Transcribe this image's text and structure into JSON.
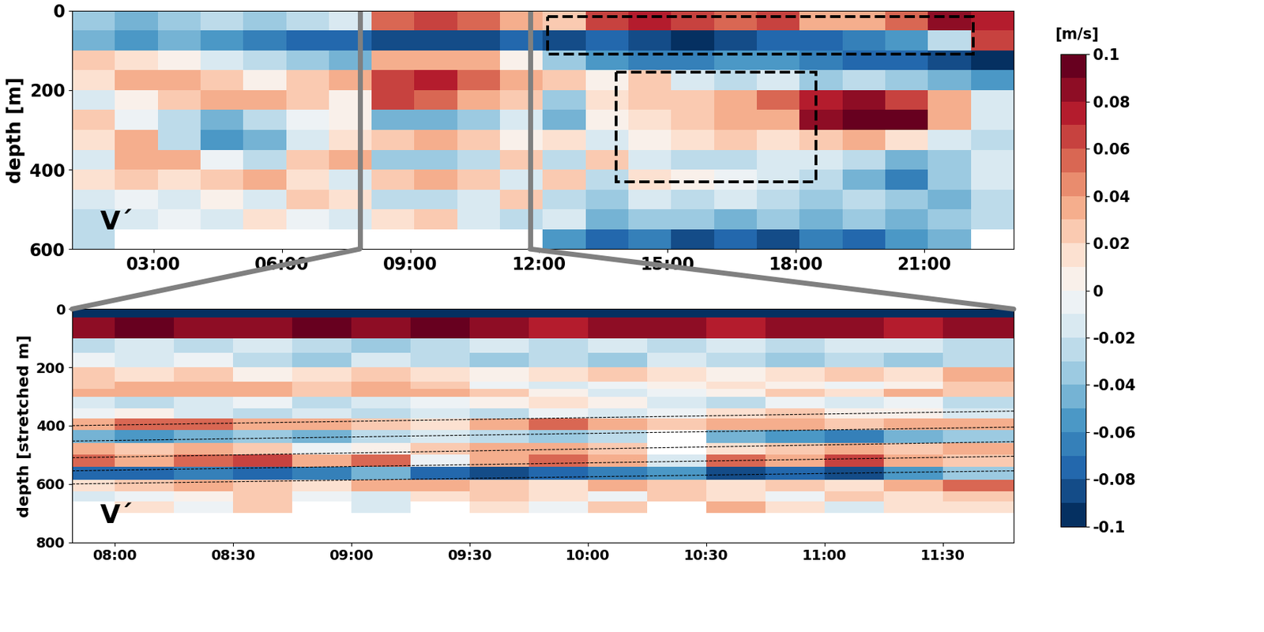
{
  "chart_data": [
    {
      "type": "heatmap",
      "ylabel": "depth [m]",
      "annotation": "V´",
      "xlim": [
        1.1,
        23.1
      ],
      "ylim": [
        600,
        0
      ],
      "xticks": [
        {
          "value": 3,
          "label": "03:00"
        },
        {
          "value": 6,
          "label": "06:00"
        },
        {
          "value": 9,
          "label": "09:00"
        },
        {
          "value": 12,
          "label": "12:00"
        },
        {
          "value": 15,
          "label": "15:00"
        },
        {
          "value": 18,
          "label": "18:00"
        },
        {
          "value": 21,
          "label": "21:00"
        }
      ],
      "yticks": [
        0,
        200,
        400,
        600
      ],
      "x_edges": [
        1.1,
        2.1,
        3.1,
        4.1,
        5.1,
        6.1,
        7.1,
        8.1,
        9.1,
        10.1,
        11.1,
        12.1,
        13.1,
        14.1,
        15.1,
        16.1,
        17.1,
        18.1,
        19.1,
        20.1,
        21.1,
        22.1,
        23.1
      ],
      "depth_edges": [
        0,
        50,
        100,
        150,
        200,
        250,
        300,
        350,
        400,
        450,
        500,
        550,
        600
      ],
      "cells": [
        [
          -0.04,
          -0.05,
          -0.04,
          -0.03,
          -0.04,
          -0.03,
          -0.02,
          0.05,
          0.06,
          0.05,
          0.04,
          0.02,
          0.06,
          0.07,
          0.06,
          0.05,
          0.06,
          0.04,
          0.03,
          0.05,
          0.08,
          0.07
        ],
        [
          -0.05,
          -0.06,
          -0.05,
          -0.06,
          -0.07,
          -0.08,
          -0.08,
          -0.09,
          -0.09,
          -0.09,
          -0.08,
          -0.09,
          -0.08,
          -0.09,
          -0.1,
          -0.09,
          -0.08,
          -0.08,
          -0.07,
          -0.06,
          -0.03,
          0.06
        ],
        [
          0.02,
          0.01,
          0.0,
          -0.02,
          -0.03,
          -0.04,
          -0.05,
          0.03,
          0.04,
          0.03,
          0.0,
          -0.04,
          -0.06,
          -0.07,
          -0.07,
          -0.06,
          -0.06,
          -0.07,
          -0.08,
          -0.08,
          -0.09,
          -0.1
        ],
        [
          0.01,
          0.03,
          0.04,
          0.02,
          0.0,
          0.02,
          0.03,
          0.06,
          0.07,
          0.05,
          0.03,
          0.02,
          0.0,
          0.02,
          -0.02,
          -0.03,
          -0.02,
          -0.04,
          -0.03,
          -0.04,
          -0.05,
          -0.06
        ],
        [
          -0.02,
          0.0,
          0.02,
          0.03,
          0.04,
          0.02,
          0.0,
          0.06,
          0.05,
          0.04,
          0.02,
          -0.04,
          0.01,
          0.02,
          0.02,
          0.03,
          0.05,
          0.07,
          0.08,
          0.06,
          0.03,
          -0.02
        ],
        [
          0.02,
          -0.01,
          -0.03,
          -0.05,
          -0.03,
          -0.01,
          0.0,
          -0.05,
          -0.05,
          -0.04,
          -0.02,
          -0.05,
          0.0,
          0.01,
          0.02,
          0.03,
          0.04,
          0.08,
          0.1,
          0.09,
          0.03,
          -0.02
        ],
        [
          0.01,
          0.03,
          -0.03,
          -0.06,
          -0.05,
          -0.02,
          0.01,
          0.02,
          0.03,
          0.02,
          0.0,
          0.01,
          -0.02,
          0.0,
          0.01,
          0.02,
          0.01,
          0.02,
          0.03,
          0.01,
          -0.02,
          -0.03
        ],
        [
          -0.02,
          0.04,
          0.03,
          -0.01,
          -0.03,
          0.02,
          0.03,
          -0.04,
          -0.04,
          -0.03,
          0.02,
          -0.03,
          0.02,
          -0.02,
          -0.03,
          -0.03,
          -0.02,
          -0.02,
          -0.03,
          -0.05,
          -0.04,
          -0.02
        ],
        [
          0.01,
          0.02,
          0.01,
          0.02,
          0.03,
          0.01,
          -0.02,
          0.02,
          0.03,
          0.02,
          -0.02,
          0.02,
          -0.03,
          0.01,
          0.0,
          -0.01,
          -0.02,
          -0.03,
          -0.05,
          -0.07,
          -0.04,
          -0.02
        ],
        [
          -0.02,
          -0.01,
          -0.02,
          0.0,
          -0.02,
          0.02,
          0.01,
          -0.03,
          -0.03,
          -0.02,
          0.02,
          -0.03,
          -0.04,
          -0.02,
          -0.03,
          -0.02,
          -0.03,
          -0.04,
          -0.03,
          -0.04,
          -0.05,
          -0.03
        ],
        [
          -0.03,
          -0.02,
          -0.01,
          -0.02,
          0.01,
          -0.01,
          -0.02,
          0.01,
          0.02,
          -0.02,
          -0.03,
          -0.02,
          -0.05,
          -0.04,
          -0.04,
          -0.05,
          -0.04,
          -0.05,
          -0.04,
          -0.05,
          -0.04,
          -0.03
        ],
        [
          -0.03,
          null,
          null,
          null,
          null,
          null,
          null,
          null,
          null,
          null,
          null,
          -0.06,
          -0.08,
          -0.07,
          -0.09,
          -0.08,
          -0.09,
          -0.07,
          -0.08,
          -0.06,
          -0.05,
          null
        ]
      ],
      "boxes": [
        {
          "x": [
            12.21,
            22.16
          ],
          "depth": [
            15,
            110
          ]
        },
        {
          "x": [
            13.81,
            18.48
          ],
          "depth": [
            155,
            430
          ]
        }
      ],
      "colorbar": {
        "label": "[m/s]",
        "range": [
          -0.1,
          0.1
        ],
        "ticks": [
          -0.1,
          -0.08,
          -0.06,
          -0.04,
          -0.02,
          0,
          0.02,
          0.04,
          0.06,
          0.08,
          0.1
        ]
      }
    },
    {
      "type": "heatmap",
      "ylabel": "depth [stretched m]",
      "annotation": "V´",
      "xlim": [
        7.82,
        11.8
      ],
      "ylim": [
        800,
        0
      ],
      "xticks": [
        {
          "value": 8,
          "label": "08:00"
        },
        {
          "value": 8.5,
          "label": "08:30"
        },
        {
          "value": 9,
          "label": "09:00"
        },
        {
          "value": 9.5,
          "label": "09:30"
        },
        {
          "value": 10,
          "label": "10:00"
        },
        {
          "value": 10.5,
          "label": "10:30"
        },
        {
          "value": 11,
          "label": "11:00"
        },
        {
          "value": 11.5,
          "label": "11:30"
        }
      ],
      "yticks": [
        0,
        200,
        400,
        600,
        800
      ],
      "x_edges": [
        7.82,
        8.0,
        8.25,
        8.5,
        8.75,
        9.0,
        9.25,
        9.5,
        9.75,
        10.0,
        10.25,
        10.5,
        10.75,
        11.0,
        11.25,
        11.5,
        11.8
      ],
      "depth_edges": [
        0,
        30,
        100,
        150,
        200,
        250,
        275,
        300,
        340,
        375,
        415,
        460,
        500,
        540,
        585,
        625,
        660,
        700
      ],
      "cells": [
        [
          -0.1,
          -0.1,
          -0.1,
          -0.1,
          -0.1,
          -0.1,
          -0.1,
          -0.1,
          -0.1,
          -0.1,
          -0.1,
          -0.1,
          -0.1,
          -0.1,
          -0.1,
          -0.1
        ],
        [
          0.08,
          0.09,
          0.08,
          0.08,
          0.09,
          0.08,
          0.09,
          0.08,
          0.07,
          0.08,
          0.08,
          0.07,
          0.08,
          0.08,
          0.07,
          0.08
        ],
        [
          -0.03,
          -0.02,
          -0.03,
          -0.02,
          -0.03,
          -0.04,
          -0.03,
          -0.02,
          -0.03,
          -0.02,
          -0.03,
          -0.02,
          -0.03,
          -0.02,
          -0.02,
          -0.03
        ],
        [
          -0.01,
          -0.02,
          -0.01,
          -0.03,
          -0.04,
          -0.02,
          -0.03,
          -0.04,
          -0.03,
          -0.04,
          -0.02,
          -0.03,
          -0.04,
          -0.03,
          -0.04,
          -0.03
        ],
        [
          0.02,
          0.01,
          0.02,
          0.0,
          0.01,
          0.02,
          0.01,
          0.0,
          0.01,
          0.02,
          0.01,
          0.0,
          0.01,
          0.02,
          0.01,
          0.03
        ],
        [
          0.02,
          0.03,
          0.04,
          0.03,
          0.02,
          0.03,
          0.02,
          -0.01,
          -0.02,
          -0.01,
          0.0,
          0.01,
          0.0,
          -0.01,
          0.0,
          0.02
        ],
        [
          0.03,
          0.04,
          0.03,
          0.03,
          0.02,
          0.03,
          0.03,
          0.02,
          0.0,
          -0.02,
          -0.01,
          0.0,
          0.02,
          0.01,
          0.03,
          0.02
        ],
        [
          -0.02,
          -0.03,
          -0.02,
          -0.01,
          -0.03,
          -0.02,
          -0.01,
          0.0,
          0.01,
          0.0,
          -0.02,
          -0.03,
          -0.01,
          -0.02,
          -0.01,
          -0.03
        ],
        [
          -0.01,
          0.0,
          -0.02,
          -0.03,
          -0.02,
          -0.03,
          -0.02,
          -0.03,
          -0.01,
          -0.02,
          -0.01,
          0.01,
          0.02,
          0.0,
          0.0,
          -0.02
        ],
        [
          0.04,
          0.05,
          0.05,
          0.04,
          0.03,
          0.02,
          0.01,
          0.03,
          0.05,
          0.03,
          0.02,
          0.04,
          0.03,
          0.02,
          0.03,
          0.04
        ],
        [
          -0.05,
          -0.06,
          -0.05,
          -0.04,
          -0.05,
          -0.03,
          -0.02,
          -0.03,
          -0.04,
          -0.03,
          null,
          -0.05,
          -0.06,
          -0.07,
          -0.05,
          -0.04
        ],
        [
          0.03,
          0.02,
          0.03,
          0.02,
          -0.01,
          0.0,
          0.02,
          0.03,
          0.04,
          0.02,
          null,
          0.01,
          0.02,
          0.03,
          0.02,
          0.03
        ],
        [
          0.05,
          0.04,
          0.05,
          0.06,
          0.04,
          0.05,
          -0.01,
          0.04,
          0.05,
          0.04,
          -0.02,
          0.05,
          0.04,
          0.06,
          0.03,
          0.02
        ],
        [
          -0.08,
          -0.08,
          -0.07,
          -0.08,
          -0.07,
          -0.05,
          -0.08,
          -0.09,
          -0.08,
          -0.07,
          -0.06,
          -0.09,
          -0.08,
          -0.09,
          -0.06,
          -0.04
        ],
        [
          0.01,
          0.02,
          0.03,
          0.02,
          0.01,
          0.04,
          0.03,
          0.02,
          0.01,
          0.03,
          0.02,
          0.01,
          0.02,
          0.01,
          0.03,
          0.05
        ],
        [
          -0.02,
          -0.01,
          0.0,
          0.02,
          -0.01,
          -0.02,
          0.01,
          0.02,
          0.01,
          -0.01,
          0.02,
          0.01,
          -0.01,
          0.02,
          0.01,
          0.02
        ],
        [
          null,
          0.01,
          -0.01,
          0.02,
          null,
          -0.02,
          null,
          0.01,
          -0.01,
          0.02,
          null,
          0.03,
          0.01,
          -0.02,
          0.01,
          0.01
        ]
      ],
      "isolines": {
        "x": [
          7.82,
          11.8
        ],
        "depths": [
          [
            400,
            350
          ],
          [
            453,
            405
          ],
          [
            510,
            455
          ],
          [
            555,
            505
          ],
          [
            600,
            555
          ]
        ]
      }
    }
  ]
}
